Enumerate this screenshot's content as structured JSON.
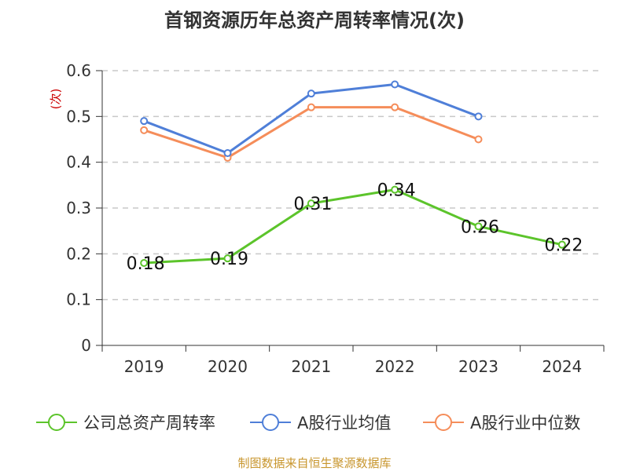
{
  "chart_data": {
    "type": "line",
    "title": "首钢资源历年总资产周转率情况(次)",
    "ylabel": "(次)",
    "categories": [
      "2019",
      "2020",
      "2021",
      "2022",
      "2023",
      "2024"
    ],
    "ylim": [
      0,
      0.6
    ],
    "yticks": [
      "0",
      "0.1",
      "0.2",
      "0.3",
      "0.4",
      "0.5",
      "0.6"
    ],
    "grid": true,
    "legend_position": "bottom",
    "series": [
      {
        "name": "公司总资产周转率",
        "color": "#5cc42b",
        "values": [
          0.18,
          0.19,
          0.31,
          0.34,
          0.26,
          0.22
        ],
        "labels": [
          "0.18",
          "0.19",
          "0.31",
          "0.34",
          "0.26",
          "0.22"
        ]
      },
      {
        "name": "A股行业均值",
        "color": "#4f7fd8",
        "values": [
          0.49,
          0.42,
          0.55,
          0.57,
          0.5,
          null
        ]
      },
      {
        "name": "A股行业中位数",
        "color": "#f58d5a",
        "values": [
          0.47,
          0.41,
          0.52,
          0.52,
          0.45,
          null
        ]
      }
    ]
  },
  "source": "制图数据来自恒生聚源数据库"
}
